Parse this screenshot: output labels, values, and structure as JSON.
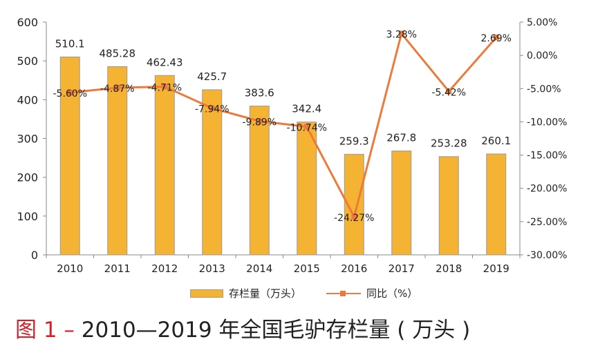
{
  "chart_data": {
    "type": "bar+line",
    "categories": [
      "2010",
      "2011",
      "2012",
      "2013",
      "2014",
      "2015",
      "2016",
      "2017",
      "2018",
      "2019"
    ],
    "series": [
      {
        "name": "存栏量（万头）",
        "type": "bar",
        "axis": "left",
        "color": "#f4b332",
        "values": [
          510.1,
          485.28,
          462.43,
          425.7,
          383.6,
          342.4,
          259.3,
          267.8,
          253.28,
          260.1
        ],
        "labels": [
          "510.1",
          "485.28",
          "462.43",
          "425.7",
          "383.6",
          "342.4",
          "259.3",
          "267.8",
          "253.28",
          "260.1"
        ]
      },
      {
        "name": "同比（%）",
        "type": "line",
        "axis": "right",
        "color": "#ec7a3a",
        "values": [
          -5.6,
          -4.87,
          -4.71,
          -7.94,
          -9.89,
          -10.74,
          -24.27,
          3.28,
          -5.42,
          2.69
        ],
        "labels": [
          "-5.60%",
          "-4.87%",
          "-4.71%",
          "-7.94%",
          "-9.89%",
          "-10.74%",
          "-24.27%",
          "3.28%",
          "-5.42%",
          "2.69%"
        ]
      }
    ],
    "left_axis": {
      "ylim": [
        0,
        600
      ],
      "ticks": [
        "0",
        "100",
        "200",
        "300",
        "400",
        "500",
        "600"
      ]
    },
    "right_axis": {
      "ylim": [
        -30,
        5
      ],
      "ticks": [
        "-30.00%",
        "-25.00%",
        "-20.00%",
        "-15.00%",
        "-10.00%",
        "-5.00%",
        "0.00%",
        "5.00%"
      ]
    },
    "legend_position": "bottom",
    "grid": false
  },
  "caption": {
    "figure": "图 1 –",
    "text": " 2010—2019 年全国毛驴存栏量 ( 万头 )"
  },
  "legend": {
    "bar": "存栏量（万头）",
    "line": "同比（%）"
  }
}
